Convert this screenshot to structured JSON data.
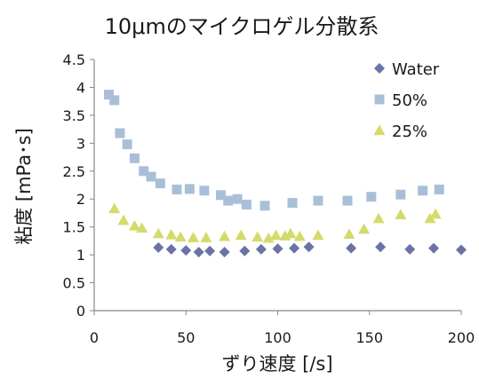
{
  "chart_data": {
    "type": "scatter",
    "title": "10μmのマイクロゲル分散系",
    "xlabel": "ずり速度 [/s]",
    "ylabel": "粘度 [mPa･s]",
    "xlim": [
      0,
      200
    ],
    "ylim": [
      0,
      4.5
    ],
    "xticks": [
      "0",
      "50",
      "100",
      "150",
      "200"
    ],
    "yticks": [
      "0",
      "0.5",
      "1",
      "1.5",
      "2",
      "2.5",
      "3",
      "3.5",
      "4",
      "4.5"
    ],
    "grid": false,
    "legend_position": "top-right",
    "series": [
      {
        "name": "Water",
        "marker": "diamond",
        "color": "#6b73a6",
        "points": [
          [
            35,
            1.13
          ],
          [
            42,
            1.1
          ],
          [
            50,
            1.08
          ],
          [
            57,
            1.05
          ],
          [
            63,
            1.07
          ],
          [
            71,
            1.05
          ],
          [
            82,
            1.07
          ],
          [
            91,
            1.1
          ],
          [
            100,
            1.11
          ],
          [
            109,
            1.12
          ],
          [
            117,
            1.14
          ],
          [
            140,
            1.12
          ],
          [
            156,
            1.14
          ],
          [
            172,
            1.1
          ],
          [
            185,
            1.12
          ],
          [
            200,
            1.09
          ]
        ]
      },
      {
        "name": "50%",
        "marker": "square",
        "color": "#a9bfd9",
        "points": [
          [
            8,
            3.87
          ],
          [
            11,
            3.77
          ],
          [
            14,
            3.18
          ],
          [
            18,
            2.98
          ],
          [
            22,
            2.73
          ],
          [
            27,
            2.5
          ],
          [
            31,
            2.4
          ],
          [
            36,
            2.28
          ],
          [
            45,
            2.17
          ],
          [
            52,
            2.18
          ],
          [
            60,
            2.15
          ],
          [
            69,
            2.07
          ],
          [
            73,
            1.97
          ],
          [
            78,
            2.0
          ],
          [
            83,
            1.9
          ],
          [
            93,
            1.88
          ],
          [
            108,
            1.93
          ],
          [
            122,
            1.97
          ],
          [
            138,
            1.97
          ],
          [
            151,
            2.04
          ],
          [
            167,
            2.08
          ],
          [
            179,
            2.15
          ],
          [
            188,
            2.17
          ]
        ]
      },
      {
        "name": "25%",
        "marker": "triangle",
        "color": "#d4da6b",
        "points": [
          [
            11,
            1.83
          ],
          [
            16,
            1.62
          ],
          [
            22,
            1.52
          ],
          [
            26,
            1.48
          ],
          [
            35,
            1.38
          ],
          [
            42,
            1.36
          ],
          [
            47,
            1.32
          ],
          [
            54,
            1.31
          ],
          [
            61,
            1.31
          ],
          [
            71,
            1.33
          ],
          [
            80,
            1.35
          ],
          [
            89,
            1.32
          ],
          [
            95,
            1.3
          ],
          [
            99,
            1.35
          ],
          [
            104,
            1.34
          ],
          [
            107,
            1.38
          ],
          [
            112,
            1.33
          ],
          [
            122,
            1.35
          ],
          [
            139,
            1.37
          ],
          [
            147,
            1.46
          ],
          [
            155,
            1.65
          ],
          [
            167,
            1.72
          ],
          [
            183,
            1.65
          ],
          [
            186,
            1.73
          ]
        ]
      }
    ]
  }
}
